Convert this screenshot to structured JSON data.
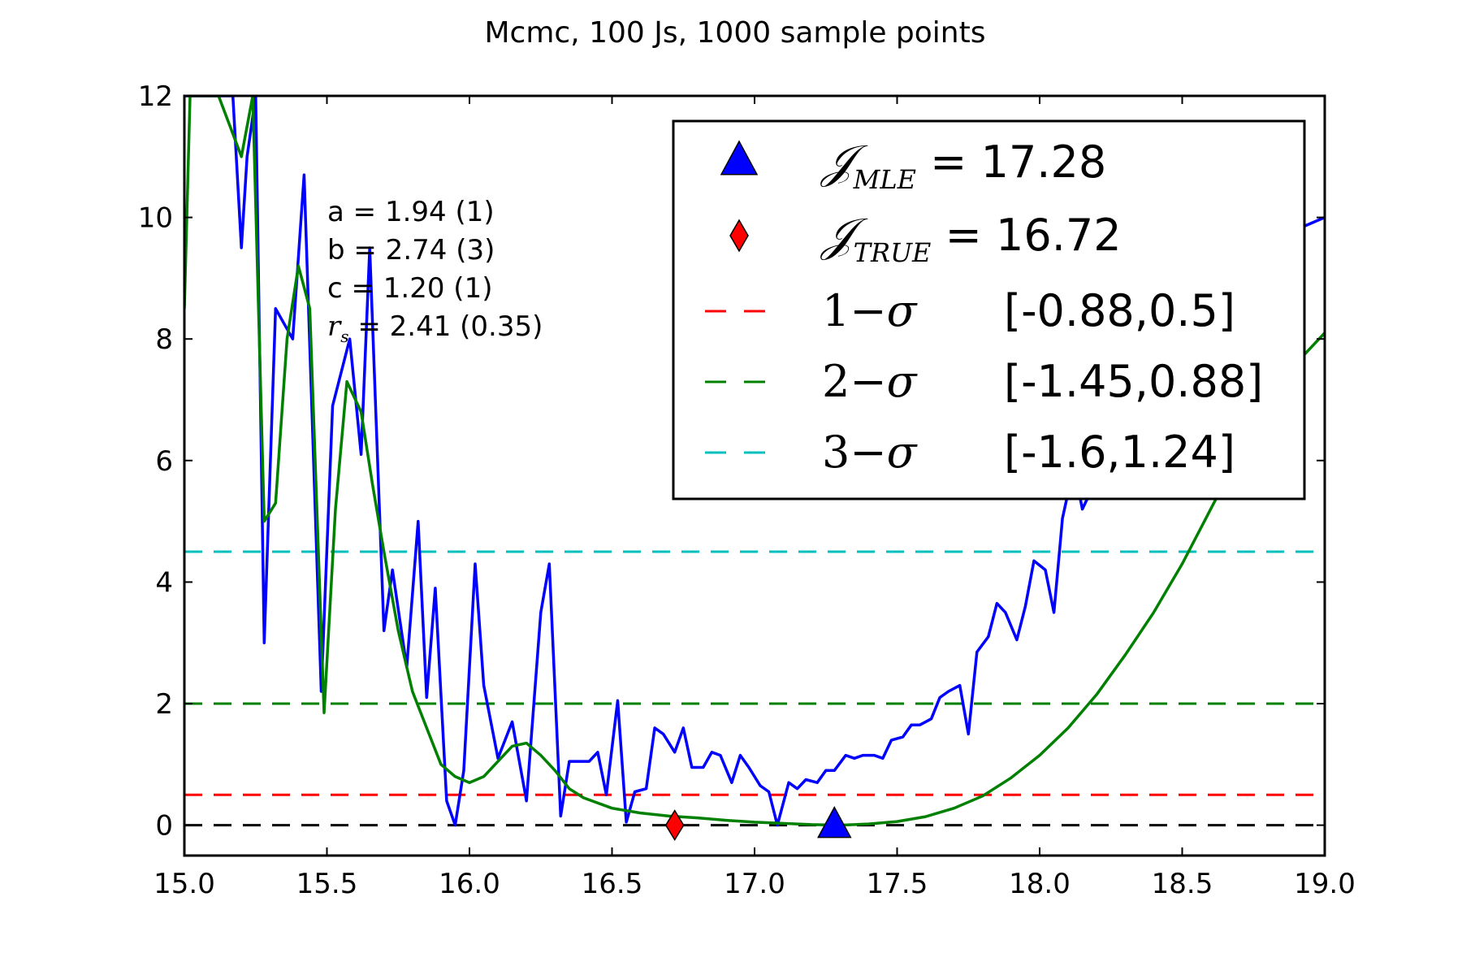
{
  "chart_data": {
    "type": "line",
    "title": "Mcmc, 100 Js, 1000 sample points",
    "xlabel": "",
    "ylabel": "",
    "xlim": [
      15.0,
      19.0
    ],
    "ylim": [
      -0.5,
      12
    ],
    "x_ticks": [
      "15.0",
      "15.5",
      "16.0",
      "16.5",
      "17.0",
      "17.5",
      "18.0",
      "18.5",
      "19.0"
    ],
    "y_ticks": [
      "0",
      "2",
      "4",
      "6",
      "8",
      "10",
      "12"
    ],
    "grid": false,
    "legend_position": "top-right",
    "series": [
      {
        "color": "#0000ff",
        "style": "solid",
        "x": [
          15.0,
          15.02,
          15.1,
          15.15,
          15.17,
          15.2,
          15.22,
          15.25,
          15.28,
          15.32,
          15.38,
          15.42,
          15.48,
          15.52,
          15.58,
          15.62,
          15.65,
          15.7,
          15.73,
          15.78,
          15.82,
          15.85,
          15.88,
          15.92,
          15.95,
          15.98,
          16.02,
          16.05,
          16.1,
          16.15,
          16.2,
          16.25,
          16.28,
          16.32,
          16.35,
          16.38,
          16.42,
          16.45,
          16.48,
          16.52,
          16.55,
          16.58,
          16.62,
          16.65,
          16.68,
          16.72,
          16.75,
          16.78,
          16.82,
          16.85,
          16.88,
          16.92,
          16.95,
          16.98,
          17.02,
          17.05,
          17.08,
          17.12,
          17.15,
          17.18,
          17.22,
          17.25,
          17.28,
          17.32,
          17.35,
          17.38,
          17.42,
          17.45,
          17.48,
          17.52,
          17.55,
          17.58,
          17.62,
          17.65,
          17.68,
          17.72,
          17.75,
          17.78,
          17.82,
          17.85,
          17.88,
          17.92,
          17.95,
          17.98,
          18.02,
          18.05,
          18.08,
          18.12,
          18.15,
          18.18,
          18.22,
          18.25,
          18.28,
          18.32,
          18.35,
          18.38,
          18.42,
          18.45,
          18.48,
          18.52,
          18.55,
          18.58,
          18.62,
          18.65,
          18.68,
          18.72,
          18.75,
          18.8,
          18.85,
          18.9,
          18.95,
          19.0
        ],
        "y": [
          12,
          12,
          12,
          12,
          12,
          9.5,
          11.0,
          12,
          3.0,
          8.5,
          8.0,
          10.7,
          2.2,
          6.9,
          8.0,
          6.1,
          9.5,
          3.2,
          4.2,
          2.6,
          5.0,
          2.1,
          3.9,
          0.4,
          0.0,
          0.9,
          4.3,
          2.3,
          1.1,
          1.7,
          0.4,
          3.5,
          4.3,
          0.15,
          1.05,
          1.05,
          1.05,
          1.2,
          0.5,
          2.05,
          0.05,
          0.55,
          0.6,
          1.6,
          1.5,
          1.2,
          1.6,
          0.95,
          0.95,
          1.2,
          1.15,
          0.7,
          1.15,
          0.95,
          0.65,
          0.55,
          0.0,
          0.7,
          0.6,
          0.75,
          0.7,
          0.9,
          0.9,
          1.15,
          1.1,
          1.15,
          1.15,
          1.1,
          1.4,
          1.45,
          1.65,
          1.65,
          1.75,
          2.1,
          2.2,
          2.3,
          1.5,
          2.85,
          3.1,
          3.65,
          3.5,
          3.05,
          3.6,
          4.35,
          4.2,
          3.5,
          5.05,
          5.9,
          5.2,
          5.5,
          6.2,
          6.6,
          7.0,
          7.2,
          7.1,
          7.5,
          7.8,
          7.6,
          8.3,
          8.8,
          9.1,
          9.2,
          9.25,
          9.3,
          9.35,
          9.4,
          9.5,
          9.6,
          9.7,
          9.8,
          9.9,
          10.0
        ]
      },
      {
        "color": "#008000",
        "style": "solid",
        "x": [
          15.0,
          15.02,
          15.07,
          15.12,
          15.16,
          15.2,
          15.24,
          15.28,
          15.32,
          15.36,
          15.4,
          15.44,
          15.49,
          15.53,
          15.57,
          15.62,
          15.66,
          15.7,
          15.75,
          15.8,
          15.85,
          15.9,
          15.95,
          16.0,
          16.05,
          16.1,
          16.15,
          16.2,
          16.25,
          16.3,
          16.35,
          16.4,
          16.5,
          16.6,
          16.7,
          16.8,
          16.9,
          17.0,
          17.1,
          17.2,
          17.3,
          17.4,
          17.5,
          17.6,
          17.7,
          17.8,
          17.9,
          18.0,
          18.1,
          18.2,
          18.3,
          18.4,
          18.5,
          18.6,
          18.7,
          18.8,
          18.9,
          19.0
        ],
        "y": [
          8.5,
          12,
          12,
          12,
          11.5,
          11.0,
          12,
          5.0,
          5.3,
          8.0,
          9.2,
          8.5,
          1.85,
          5.2,
          7.3,
          6.8,
          5.6,
          4.5,
          3.2,
          2.2,
          1.6,
          1.0,
          0.8,
          0.7,
          0.8,
          1.05,
          1.3,
          1.35,
          1.15,
          0.9,
          0.6,
          0.45,
          0.28,
          0.2,
          0.15,
          0.12,
          0.08,
          0.05,
          0.03,
          0.01,
          0.0,
          0.02,
          0.06,
          0.14,
          0.28,
          0.48,
          0.78,
          1.15,
          1.6,
          2.15,
          2.8,
          3.5,
          4.3,
          5.2,
          6.1,
          7.0,
          7.6,
          8.1
        ]
      }
    ],
    "hlines": [
      {
        "y": 0,
        "color": "#000000",
        "style": "dashed"
      },
      {
        "y": 0.5,
        "color": "#ff0000",
        "style": "dashed"
      },
      {
        "y": 2,
        "color": "#008000",
        "style": "dashed"
      },
      {
        "y": 4.5,
        "color": "#00bfbf",
        "style": "dashed"
      }
    ],
    "markers": [
      {
        "x": 17.28,
        "y": 0,
        "shape": "triangle",
        "color": "#0000ff"
      },
      {
        "x": 16.72,
        "y": 0,
        "shape": "diamond",
        "color": "#ff0000"
      }
    ],
    "annotations": [
      {
        "label": "a = 1.94 (1)"
      },
      {
        "label": "b = 2.74 (3)"
      },
      {
        "label": "c = 1.20 (1)"
      },
      {
        "symbol": "r",
        "subscript": "s",
        "label": " = 2.41 (0.35)"
      }
    ],
    "legend": [
      {
        "marker": "triangle",
        "color": "#0000ff",
        "symbol": "𝒥",
        "subscript": "MLE",
        "label": "= 17.28"
      },
      {
        "marker": "diamond",
        "color": "#ff0000",
        "symbol": "𝒥",
        "subscript": "TRUE",
        "label": "= 16.72"
      },
      {
        "marker": "dash",
        "color": "#ff0000",
        "prefix": "1−",
        "symbol": "σ",
        "label": "[-0.88,0.5]"
      },
      {
        "marker": "dash",
        "color": "#008000",
        "prefix": "2−",
        "symbol": "σ",
        "label": "[-1.45,0.88]"
      },
      {
        "marker": "dash",
        "color": "#00bfbf",
        "prefix": "3−",
        "symbol": "σ",
        "label": "[-1.6,1.24]"
      }
    ]
  }
}
